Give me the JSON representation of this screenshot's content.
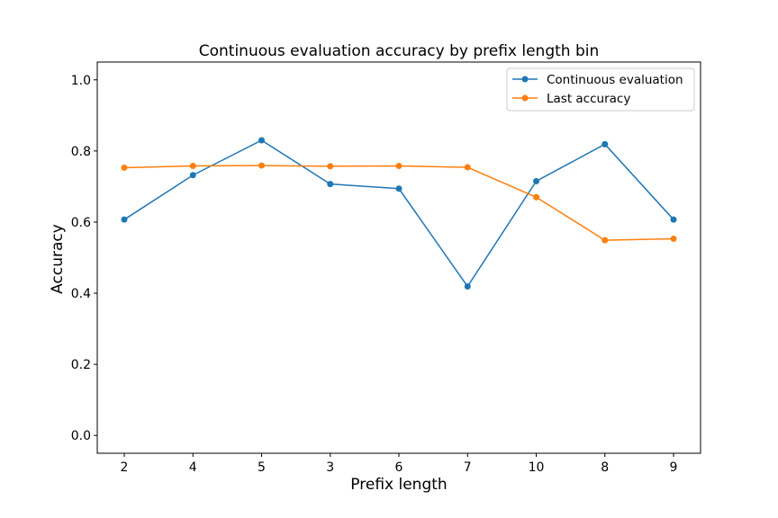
{
  "chart_data": {
    "type": "line",
    "title": "Continuous evaluation accuracy by prefix length bin",
    "xlabel": "Prefix length",
    "ylabel": "Accuracy",
    "categories": [
      "2",
      "4",
      "5",
      "3",
      "6",
      "7",
      "10",
      "8",
      "9"
    ],
    "ylim": [
      -0.05,
      1.05
    ],
    "yticks": [
      "0.0",
      "0.2",
      "0.4",
      "0.6",
      "0.8",
      "1.0"
    ],
    "grid": false,
    "legend_position": "top-right",
    "series": [
      {
        "name": "Continuous evaluation",
        "color": "#1f77b4",
        "values": [
          0.607,
          0.732,
          0.83,
          0.707,
          0.694,
          0.419,
          0.715,
          0.819,
          0.607
        ]
      },
      {
        "name": "Last accuracy",
        "color": "#ff7f0e",
        "values": [
          0.753,
          0.758,
          0.759,
          0.757,
          0.758,
          0.754,
          0.67,
          0.549,
          0.553
        ]
      }
    ]
  }
}
